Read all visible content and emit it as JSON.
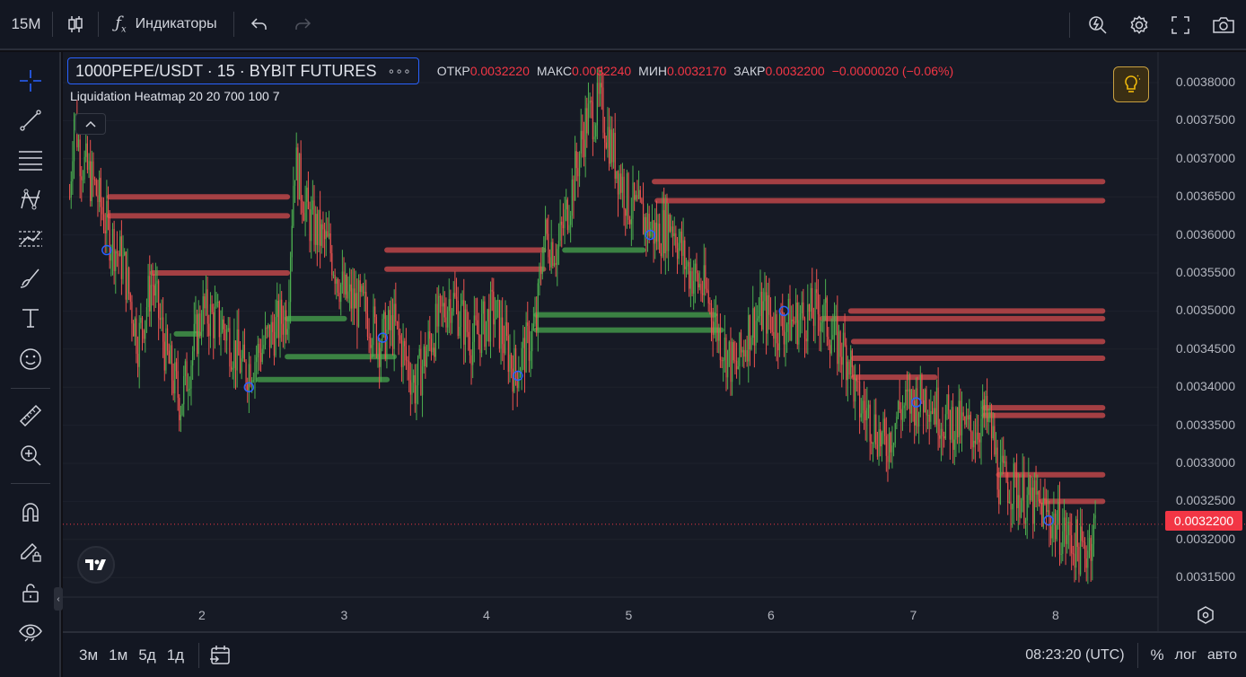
{
  "toolbar": {
    "interval": "15M",
    "indicators_label": "Индикаторы"
  },
  "legend": {
    "symbol": "1000PEPE/USDT · 15 · BYBIT FUTURES",
    "more": "∘∘∘",
    "open_label": "ОТКР",
    "open_value": "0.0032220",
    "high_label": "МАКС",
    "high_value": "0.0032240",
    "low_label": "МИН",
    "low_value": "0.0032170",
    "close_label": "ЗАКР",
    "close_value": "0.0032200",
    "change": "−0.0000020 (−0.06%)",
    "indicator": "Liquidation Heatmap 20 20 700 100 7"
  },
  "price_scale": {
    "labels": [
      "0.0038000",
      "0.0037500",
      "0.0037000",
      "0.0036500",
      "0.0036000",
      "0.0035500",
      "0.0035000",
      "0.0034500",
      "0.0034000",
      "0.0033500",
      "0.0033000",
      "0.0032500",
      "0.0032000",
      "0.0031500"
    ],
    "last_price": "0.0032200"
  },
  "time_scale": {
    "labels": [
      "2",
      "3",
      "4",
      "5",
      "6",
      "7",
      "8"
    ]
  },
  "bottom": {
    "ranges": [
      "3м",
      "1м",
      "5д",
      "1д"
    ],
    "clock": "08:23:20 (UTC)",
    "percent": "%",
    "log": "лог",
    "auto": "авто"
  },
  "colors": {
    "up": "#4caf50",
    "down": "#ef5350",
    "accent": "#2962ff",
    "last_price": "#f23645"
  },
  "chart_data": {
    "type": "candlestick",
    "symbol": "1000PEPE/USDT",
    "interval": "15",
    "ylim": [
      0.00311,
      0.00382
    ],
    "price_path": [
      [
        1.07,
        0.00365
      ],
      [
        1.1,
        0.00376
      ],
      [
        1.15,
        0.0037
      ],
      [
        1.25,
        0.00366
      ],
      [
        1.35,
        0.0036
      ],
      [
        1.45,
        0.00356
      ],
      [
        1.55,
        0.00346
      ],
      [
        1.65,
        0.00354
      ],
      [
        1.75,
        0.00344
      ],
      [
        1.85,
        0.00338
      ],
      [
        2.0,
        0.0035
      ],
      [
        2.15,
        0.00348
      ],
      [
        2.3,
        0.00342
      ],
      [
        2.45,
        0.00346
      ],
      [
        2.6,
        0.0035
      ],
      [
        2.65,
        0.0037
      ],
      [
        2.75,
        0.00362
      ],
      [
        2.9,
        0.00358
      ],
      [
        3.0,
        0.00352
      ],
      [
        3.15,
        0.0035
      ],
      [
        3.25,
        0.00346
      ],
      [
        3.35,
        0.00348
      ],
      [
        3.5,
        0.0034
      ],
      [
        3.6,
        0.00346
      ],
      [
        3.75,
        0.00352
      ],
      [
        3.9,
        0.00346
      ],
      [
        4.05,
        0.0035
      ],
      [
        4.2,
        0.00342
      ],
      [
        4.35,
        0.00348
      ],
      [
        4.4,
        0.0036
      ],
      [
        4.5,
        0.00358
      ],
      [
        4.6,
        0.00366
      ],
      [
        4.7,
        0.00375
      ],
      [
        4.8,
        0.00377
      ],
      [
        4.9,
        0.0037
      ],
      [
        5.0,
        0.00364
      ],
      [
        5.1,
        0.00362
      ],
      [
        5.2,
        0.0036
      ],
      [
        5.3,
        0.00362
      ],
      [
        5.4,
        0.00356
      ],
      [
        5.55,
        0.00352
      ],
      [
        5.65,
        0.00346
      ],
      [
        5.75,
        0.00342
      ],
      [
        5.85,
        0.00348
      ],
      [
        5.95,
        0.0035
      ],
      [
        6.05,
        0.00348
      ],
      [
        6.2,
        0.00349
      ],
      [
        6.35,
        0.0035
      ],
      [
        6.45,
        0.00346
      ],
      [
        6.55,
        0.00344
      ],
      [
        6.6,
        0.00338
      ],
      [
        6.7,
        0.00336
      ],
      [
        6.8,
        0.00332
      ],
      [
        6.9,
        0.00337
      ],
      [
        7.0,
        0.00338
      ],
      [
        7.1,
        0.00339
      ],
      [
        7.2,
        0.00336
      ],
      [
        7.3,
        0.00335
      ],
      [
        7.4,
        0.00334
      ],
      [
        7.5,
        0.00336
      ],
      [
        7.55,
        0.00334
      ],
      [
        7.6,
        0.00328
      ],
      [
        7.7,
        0.00327
      ],
      [
        7.8,
        0.00325
      ],
      [
        7.9,
        0.00324
      ],
      [
        8.0,
        0.00322
      ],
      [
        8.1,
        0.0032
      ],
      [
        8.2,
        0.00318
      ],
      [
        8.28,
        0.00322
      ]
    ],
    "heatmap_levels": [
      {
        "side": "short",
        "x0": 1.35,
        "x1": 2.6,
        "price": 0.00365
      },
      {
        "side": "short",
        "x0": 1.35,
        "x1": 2.6,
        "price": 0.003625
      },
      {
        "side": "short",
        "x0": 1.65,
        "x1": 2.6,
        "price": 0.00355
      },
      {
        "side": "short",
        "x0": 5.18,
        "x1": 8.33,
        "price": 0.00367
      },
      {
        "side": "short",
        "x0": 5.2,
        "x1": 8.33,
        "price": 0.003645
      },
      {
        "side": "short",
        "x0": 3.3,
        "x1": 4.4,
        "price": 0.00358
      },
      {
        "side": "short",
        "x0": 3.3,
        "x1": 4.4,
        "price": 0.003555
      },
      {
        "side": "short",
        "x0": 6.56,
        "x1": 8.33,
        "price": 0.0035
      },
      {
        "side": "short",
        "x0": 6.36,
        "x1": 8.33,
        "price": 0.00349
      },
      {
        "side": "short",
        "x0": 6.58,
        "x1": 8.33,
        "price": 0.00346
      },
      {
        "side": "short",
        "x0": 6.58,
        "x1": 8.33,
        "price": 0.003438
      },
      {
        "side": "short",
        "x0": 6.58,
        "x1": 7.15,
        "price": 0.003413
      },
      {
        "side": "short",
        "x0": 7.5,
        "x1": 8.33,
        "price": 0.003373
      },
      {
        "side": "short",
        "x0": 7.5,
        "x1": 8.33,
        "price": 0.003363
      },
      {
        "side": "short",
        "x0": 7.6,
        "x1": 8.33,
        "price": 0.003285
      },
      {
        "side": "short",
        "x0": 7.9,
        "x1": 8.33,
        "price": 0.00325
      },
      {
        "side": "long",
        "x0": 4.35,
        "x1": 5.6,
        "price": 0.003495
      },
      {
        "side": "long",
        "x0": 4.35,
        "x1": 5.65,
        "price": 0.003475
      },
      {
        "side": "long",
        "x0": 2.6,
        "x1": 3.0,
        "price": 0.00349
      },
      {
        "side": "long",
        "x0": 2.6,
        "x1": 3.35,
        "price": 0.00344
      },
      {
        "side": "long",
        "x0": 2.4,
        "x1": 3.3,
        "price": 0.00341
      },
      {
        "side": "long",
        "x0": 4.55,
        "x1": 5.1,
        "price": 0.00358
      },
      {
        "side": "long",
        "x0": 1.82,
        "x1": 1.98,
        "price": 0.00347
      }
    ]
  }
}
